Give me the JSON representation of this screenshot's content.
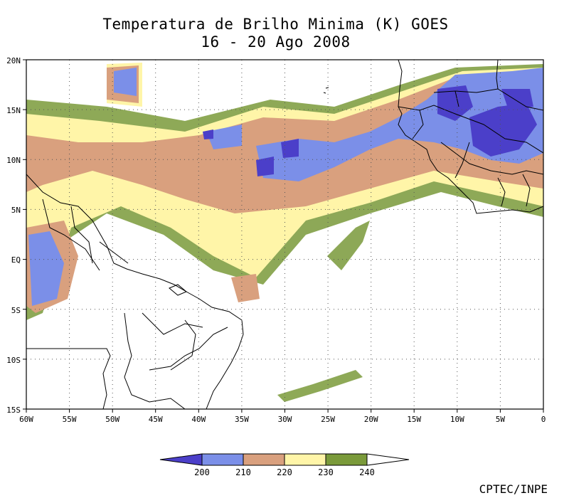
{
  "title": {
    "line1": "Temperatura de Brilho Minima (K) GOES",
    "line2": "16 - 20 Ago 2008"
  },
  "map": {
    "lat_labels": [
      "20N",
      "15N",
      "10N",
      "5N",
      "EQ",
      "5S",
      "10S",
      "15S"
    ],
    "lon_labels": [
      "60W",
      "55W",
      "50W",
      "45W",
      "40W",
      "35W",
      "30W",
      "25W",
      "20W",
      "15W",
      "10W",
      "5W",
      "0"
    ],
    "lat_range": [
      -15,
      20
    ],
    "lon_range": [
      -60,
      0
    ],
    "grid": "dotted"
  },
  "colorbar": {
    "labels": [
      "200",
      "210",
      "220",
      "230",
      "240"
    ],
    "colors": [
      "#4b3fc9",
      "#7b8fe8",
      "#d9a07e",
      "#fff5a8",
      "#7a9a3a"
    ]
  },
  "credit": "CPTEC/INPE"
}
